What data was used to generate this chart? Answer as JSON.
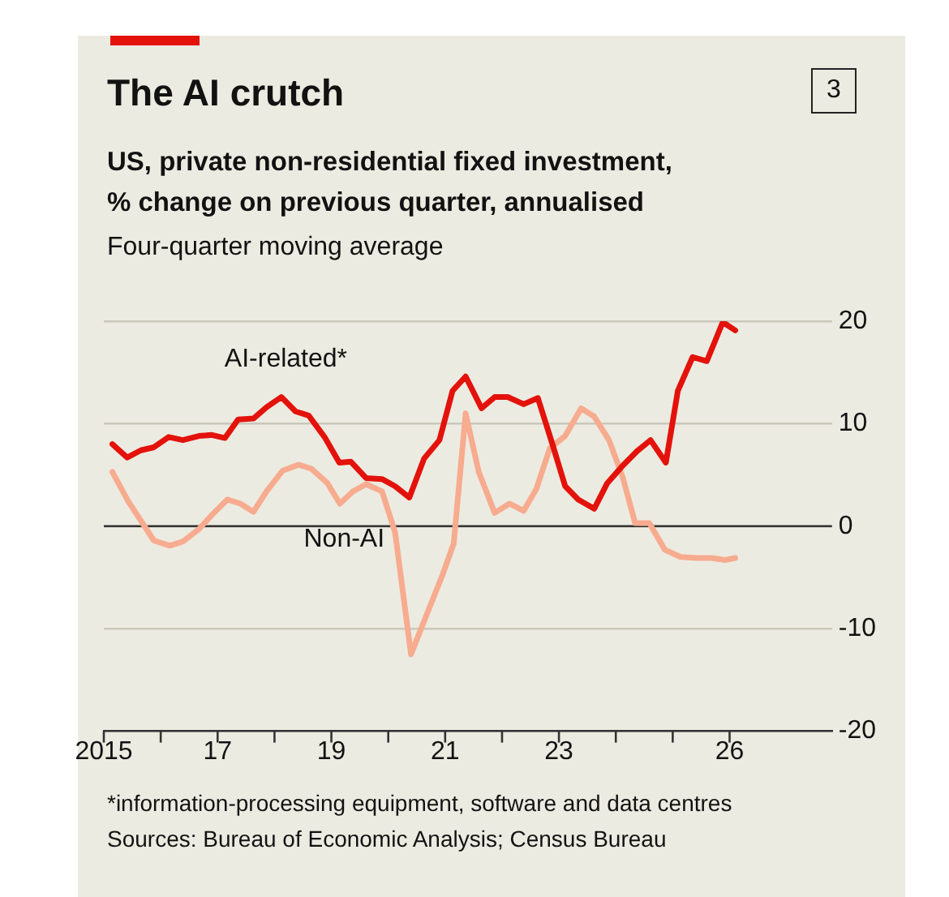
{
  "chart_data": {
    "type": "line",
    "title": "The AI crutch",
    "subtitle": "US, private non-residential fixed investment,\n% change on previous quarter, annualised",
    "ylabel": "Four-quarter moving average",
    "annotations": [
      "3",
      "*information-processing equipment, software and data centres",
      "Sources: Bureau of Economic Analysis; Census Bureau"
    ],
    "series": [
      {
        "name": "AI-related*",
        "color": "#e3120b",
        "x": [
          2015.15,
          2015.41,
          2015.65,
          2015.88,
          2016.14,
          2016.39,
          2016.67,
          2016.9,
          2017.13,
          2017.36,
          2017.63,
          2017.86,
          2018.12,
          2018.37,
          2018.6,
          2018.88,
          2019.14,
          2019.34,
          2019.61,
          2019.89,
          2020.12,
          2020.37,
          2020.63,
          2020.9,
          2021.13,
          2021.36,
          2021.64,
          2021.87,
          2022.1,
          2022.38,
          2022.63,
          2022.88,
          2023.11,
          2023.34,
          2023.62,
          2023.85,
          2024.12,
          2024.37,
          2024.61,
          2024.88,
          2025.09,
          2025.35,
          2025.6,
          2025.88,
          2026.1
        ],
        "values": [
          8.0,
          6.7,
          7.4,
          7.7,
          8.7,
          8.4,
          8.8,
          8.9,
          8.6,
          10.4,
          10.5,
          11.6,
          12.6,
          11.2,
          10.8,
          8.7,
          6.2,
          6.3,
          4.7,
          4.6,
          3.9,
          2.8,
          6.6,
          8.4,
          13.2,
          14.6,
          11.5,
          12.6,
          12.6,
          11.9,
          12.5,
          8.1,
          3.9,
          2.6,
          1.7,
          4.2,
          5.9,
          7.3,
          8.4,
          6.2,
          13.2,
          16.5,
          16.1,
          19.9,
          19.1
        ]
      },
      {
        "name": "Non-AI",
        "color": "#f7ab8f",
        "x": [
          2015.15,
          2015.42,
          2015.88,
          2016.16,
          2016.39,
          2016.67,
          2016.9,
          2017.17,
          2017.4,
          2017.63,
          2017.86,
          2018.14,
          2018.42,
          2018.65,
          2018.93,
          2019.15,
          2019.38,
          2019.61,
          2019.89,
          2020.12,
          2020.4,
          2020.67,
          2020.95,
          2021.15,
          2021.36,
          2021.59,
          2021.87,
          2022.13,
          2022.38,
          2022.6,
          2022.84,
          2023.11,
          2023.39,
          2023.62,
          2023.88,
          2024.12,
          2024.34,
          2024.59,
          2024.86,
          2025.14,
          2025.41,
          2025.69,
          2025.92,
          2026.1
        ],
        "values": [
          5.3,
          2.5,
          -1.4,
          -1.9,
          -1.5,
          -0.3,
          1.1,
          2.6,
          2.2,
          1.4,
          3.4,
          5.4,
          6.0,
          5.6,
          4.2,
          2.2,
          3.4,
          4.1,
          3.4,
          -0.6,
          -12.5,
          -8.7,
          -4.8,
          -1.7,
          11.0,
          5.3,
          1.3,
          2.2,
          1.5,
          3.6,
          7.6,
          8.8,
          11.5,
          10.7,
          8.4,
          4.8,
          0.3,
          0.3,
          -2.3,
          -3.0,
          -3.1,
          -3.1,
          -3.3,
          -3.1
        ]
      }
    ],
    "xlim": [
      2015,
      2027.8
    ],
    "xticks": [
      2015,
      {
        "value": 2016,
        "label": null
      },
      {
        "value": 2017,
        "label": "17"
      },
      {
        "value": 2018,
        "label": null
      },
      {
        "value": 2019,
        "label": "19"
      },
      {
        "value": 2020,
        "label": null
      },
      {
        "value": 2021,
        "label": "21"
      },
      {
        "value": 2022,
        "label": null
      },
      {
        "value": 2023,
        "label": "23"
      },
      {
        "value": 2024,
        "label": null
      },
      {
        "value": 2025,
        "label": null
      },
      {
        "value": 2026,
        "label": "26"
      }
    ],
    "ylim": [
      -20,
      20
    ],
    "yticks": [
      -20,
      -10,
      0,
      10,
      20
    ],
    "ref_lines": [
      {
        "axis": "y",
        "value": 0,
        "color": "#333333"
      }
    ],
    "grid": "y",
    "legend": false,
    "marker": "none",
    "line_style": "solid"
  }
}
